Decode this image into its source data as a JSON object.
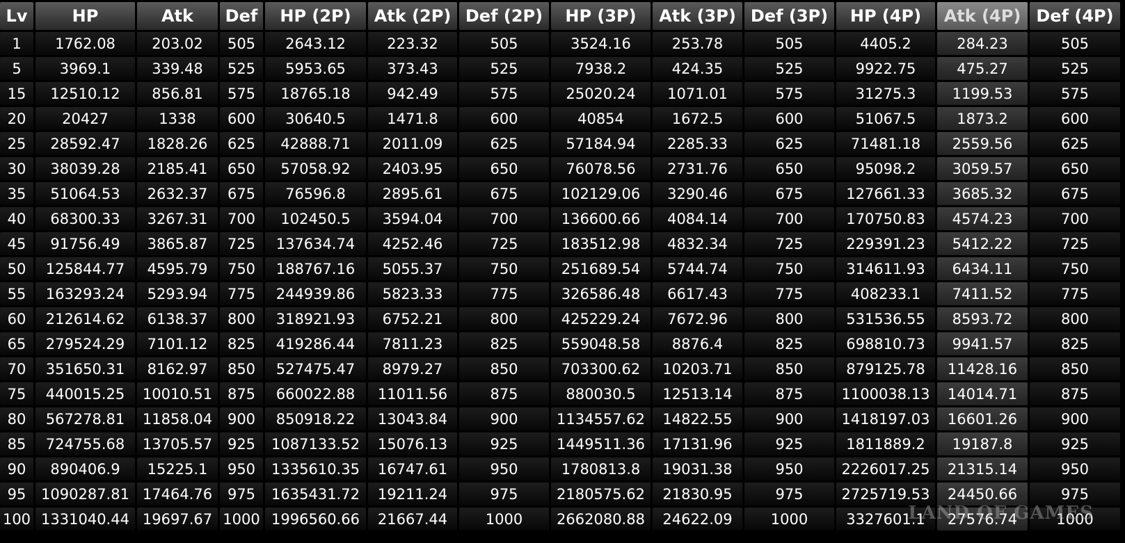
{
  "table": {
    "columns": [
      "Lv",
      "HP",
      "Atk",
      "Def",
      "HP (2P)",
      "Atk (2P)",
      "Def (2P)",
      "HP (3P)",
      "Atk (3P)",
      "Def (3P)",
      "HP (4P)",
      "Atk (4P)",
      "Def (4P)"
    ],
    "rows": [
      [
        1,
        1762.08,
        203.02,
        505,
        2643.12,
        223.32,
        505,
        3524.16,
        253.78,
        505,
        4405.2,
        284.23,
        505
      ],
      [
        5,
        3969.1,
        339.48,
        525,
        5953.65,
        373.43,
        525,
        7938.2,
        424.35,
        525,
        9922.75,
        475.27,
        525
      ],
      [
        15,
        12510.12,
        856.81,
        575,
        18765.18,
        942.49,
        575,
        25020.24,
        1071.01,
        575,
        31275.3,
        1199.53,
        575
      ],
      [
        20,
        20427,
        1338,
        600,
        30640.5,
        1471.8,
        600,
        40854,
        1672.5,
        600,
        51067.5,
        1873.2,
        600
      ],
      [
        25,
        28592.47,
        1828.26,
        625,
        42888.71,
        2011.09,
        625,
        57184.94,
        2285.33,
        625,
        71481.18,
        2559.56,
        625
      ],
      [
        30,
        38039.28,
        2185.41,
        650,
        57058.92,
        2403.95,
        650,
        76078.56,
        2731.76,
        650,
        95098.2,
        3059.57,
        650
      ],
      [
        35,
        51064.53,
        2632.37,
        675,
        76596.8,
        2895.61,
        675,
        102129.06,
        3290.46,
        675,
        127661.33,
        3685.32,
        675
      ],
      [
        40,
        68300.33,
        3267.31,
        700,
        102450.5,
        3594.04,
        700,
        136600.66,
        4084.14,
        700,
        170750.83,
        4574.23,
        700
      ],
      [
        45,
        91756.49,
        3865.87,
        725,
        137634.74,
        4252.46,
        725,
        183512.98,
        4832.34,
        725,
        229391.23,
        5412.22,
        725
      ],
      [
        50,
        125844.77,
        4595.79,
        750,
        188767.16,
        5055.37,
        750,
        251689.54,
        5744.74,
        750,
        314611.93,
        6434.11,
        750
      ],
      [
        55,
        163293.24,
        5293.94,
        775,
        244939.86,
        5823.33,
        775,
        326586.48,
        6617.43,
        775,
        408233.1,
        7411.52,
        775
      ],
      [
        60,
        212614.62,
        6138.37,
        800,
        318921.93,
        6752.21,
        800,
        425229.24,
        7672.96,
        800,
        531536.55,
        8593.72,
        800
      ],
      [
        65,
        279524.29,
        7101.12,
        825,
        419286.44,
        7811.23,
        825,
        559048.58,
        8876.4,
        825,
        698810.73,
        9941.57,
        825
      ],
      [
        70,
        351650.31,
        8162.97,
        850,
        527475.47,
        8979.27,
        850,
        703300.62,
        10203.71,
        850,
        879125.78,
        11428.16,
        850
      ],
      [
        75,
        440015.25,
        10010.51,
        875,
        660022.88,
        11011.56,
        875,
        880030.5,
        12513.14,
        875,
        1100038.13,
        14014.71,
        875
      ],
      [
        80,
        567278.81,
        11858.04,
        900,
        850918.22,
        13043.84,
        900,
        1134557.62,
        14822.55,
        900,
        1418197.03,
        16601.26,
        900
      ],
      [
        85,
        724755.68,
        13705.57,
        925,
        1087133.52,
        15076.13,
        925,
        1449511.36,
        17131.96,
        925,
        1811889.2,
        19187.8,
        925
      ],
      [
        90,
        890406.9,
        15225.1,
        950,
        1335610.35,
        16747.61,
        950,
        1780813.8,
        19031.38,
        950,
        2226017.25,
        21315.14,
        950
      ],
      [
        95,
        1090287.81,
        17464.76,
        975,
        1635431.72,
        19211.24,
        975,
        2180575.62,
        21830.95,
        975,
        2725719.53,
        24450.66,
        975
      ],
      [
        100,
        1331040.44,
        19697.67,
        1000,
        1996560.66,
        21667.44,
        1000,
        2662080.88,
        24622.09,
        1000,
        3327601.1,
        27576.74,
        1000
      ]
    ],
    "watermark": "LAND OF GAMES"
  }
}
